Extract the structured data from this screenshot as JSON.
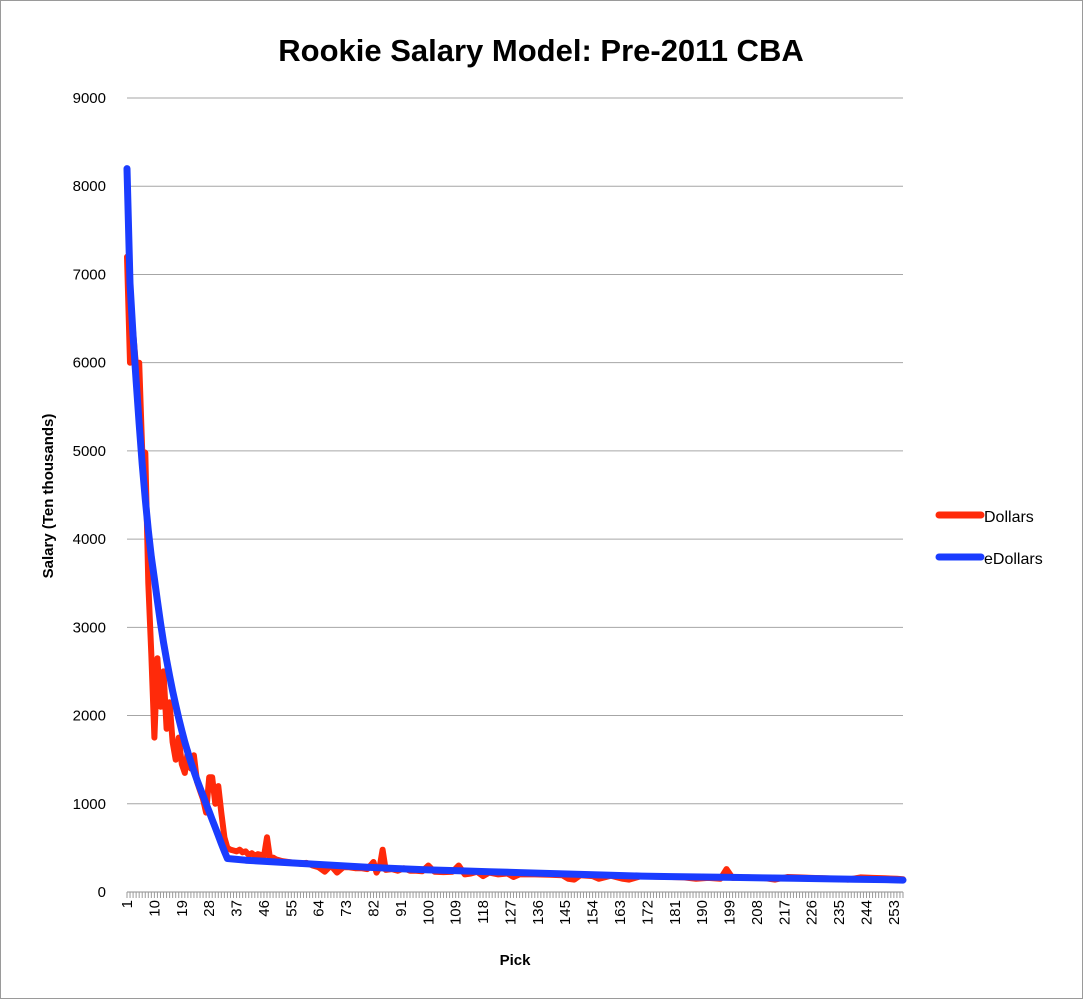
{
  "chart_data": {
    "type": "line",
    "title": "Rookie Salary Model: Pre-2011 CBA",
    "xlabel": "Pick",
    "ylabel": "Salary (Ten thousands)",
    "x_range": [
      1,
      256
    ],
    "ylim": [
      0,
      9000
    ],
    "y_ticks": [
      0,
      1000,
      2000,
      3000,
      4000,
      5000,
      6000,
      7000,
      8000,
      9000
    ],
    "x_tick_labels": [
      1,
      10,
      19,
      28,
      37,
      46,
      55,
      64,
      73,
      82,
      91,
      100,
      109,
      118,
      127,
      136,
      145,
      154,
      163,
      172,
      181,
      190,
      199,
      208,
      217,
      226,
      235,
      244,
      253
    ],
    "grid": true,
    "legend_position": "right",
    "series": [
      {
        "name": "Dollars",
        "color": "#ff2a0a",
        "points": [
          [
            1,
            7200
          ],
          [
            2,
            6000
          ],
          [
            3,
            6350
          ],
          [
            4,
            5950
          ],
          [
            5,
            6000
          ],
          [
            6,
            5000
          ],
          [
            7,
            4980
          ],
          [
            8,
            3500
          ],
          [
            9,
            2700
          ],
          [
            10,
            1750
          ],
          [
            11,
            2650
          ],
          [
            12,
            2100
          ],
          [
            13,
            2500
          ],
          [
            14,
            1850
          ],
          [
            15,
            2150
          ],
          [
            16,
            1700
          ],
          [
            17,
            1500
          ],
          [
            18,
            1750
          ],
          [
            19,
            1450
          ],
          [
            20,
            1350
          ],
          [
            21,
            1600
          ],
          [
            22,
            1400
          ],
          [
            23,
            1550
          ],
          [
            24,
            1250
          ],
          [
            25,
            1150
          ],
          [
            26,
            1050
          ],
          [
            27,
            900
          ],
          [
            28,
            1300
          ],
          [
            29,
            1300
          ],
          [
            30,
            1000
          ],
          [
            31,
            1200
          ],
          [
            32,
            900
          ],
          [
            33,
            620
          ],
          [
            34,
            500
          ],
          [
            35,
            480
          ],
          [
            36,
            470
          ],
          [
            37,
            460
          ],
          [
            38,
            480
          ],
          [
            39,
            450
          ],
          [
            40,
            460
          ],
          [
            41,
            420
          ],
          [
            42,
            440
          ],
          [
            43,
            410
          ],
          [
            44,
            430
          ],
          [
            45,
            420
          ],
          [
            46,
            400
          ],
          [
            47,
            620
          ],
          [
            48,
            380
          ],
          [
            49,
            390
          ],
          [
            50,
            370
          ],
          [
            52,
            350
          ],
          [
            54,
            340
          ],
          [
            56,
            330
          ],
          [
            58,
            320
          ],
          [
            60,
            330
          ],
          [
            62,
            300
          ],
          [
            64,
            280
          ],
          [
            66,
            230
          ],
          [
            68,
            300
          ],
          [
            70,
            220
          ],
          [
            72,
            280
          ],
          [
            74,
            280
          ],
          [
            76,
            270
          ],
          [
            78,
            270
          ],
          [
            80,
            260
          ],
          [
            82,
            340
          ],
          [
            83,
            220
          ],
          [
            84,
            280
          ],
          [
            85,
            480
          ],
          [
            86,
            250
          ],
          [
            88,
            260
          ],
          [
            90,
            240
          ],
          [
            92,
            270
          ],
          [
            94,
            240
          ],
          [
            96,
            240
          ],
          [
            98,
            235
          ],
          [
            100,
            300
          ],
          [
            102,
            230
          ],
          [
            105,
            225
          ],
          [
            108,
            230
          ],
          [
            110,
            300
          ],
          [
            112,
            200
          ],
          [
            114,
            210
          ],
          [
            116,
            230
          ],
          [
            118,
            180
          ],
          [
            120,
            220
          ],
          [
            123,
            200
          ],
          [
            126,
            210
          ],
          [
            128,
            170
          ],
          [
            130,
            200
          ],
          [
            135,
            200
          ],
          [
            140,
            195
          ],
          [
            144,
            190
          ],
          [
            146,
            150
          ],
          [
            148,
            140
          ],
          [
            150,
            190
          ],
          [
            154,
            180
          ],
          [
            156,
            150
          ],
          [
            160,
            185
          ],
          [
            164,
            150
          ],
          [
            166,
            140
          ],
          [
            170,
            180
          ],
          [
            175,
            175
          ],
          [
            180,
            170
          ],
          [
            184,
            165
          ],
          [
            188,
            150
          ],
          [
            192,
            160
          ],
          [
            196,
            150
          ],
          [
            198,
            260
          ],
          [
            200,
            160
          ],
          [
            205,
            165
          ],
          [
            210,
            160
          ],
          [
            214,
            140
          ],
          [
            218,
            170
          ],
          [
            222,
            165
          ],
          [
            226,
            160
          ],
          [
            230,
            155
          ],
          [
            234,
            150
          ],
          [
            238,
            140
          ],
          [
            242,
            165
          ],
          [
            246,
            160
          ],
          [
            250,
            155
          ],
          [
            254,
            150
          ],
          [
            256,
            145
          ]
        ]
      },
      {
        "name": "eDollars",
        "color": "#1a3cff",
        "points": [
          [
            1,
            8200
          ],
          [
            2,
            6900
          ],
          [
            3,
            6300
          ],
          [
            4,
            5800
          ],
          [
            5,
            5300
          ],
          [
            6,
            4850
          ],
          [
            7,
            4450
          ],
          [
            8,
            4100
          ],
          [
            9,
            3800
          ],
          [
            10,
            3550
          ],
          [
            11,
            3300
          ],
          [
            12,
            3050
          ],
          [
            13,
            2830
          ],
          [
            14,
            2630
          ],
          [
            15,
            2450
          ],
          [
            16,
            2280
          ],
          [
            17,
            2120
          ],
          [
            18,
            1970
          ],
          [
            19,
            1830
          ],
          [
            20,
            1700
          ],
          [
            21,
            1580
          ],
          [
            22,
            1470
          ],
          [
            23,
            1370
          ],
          [
            24,
            1270
          ],
          [
            25,
            1180
          ],
          [
            26,
            1090
          ],
          [
            27,
            1000
          ],
          [
            28,
            910
          ],
          [
            29,
            820
          ],
          [
            30,
            730
          ],
          [
            31,
            640
          ],
          [
            32,
            550
          ],
          [
            33,
            460
          ],
          [
            34,
            380
          ],
          [
            40,
            360
          ],
          [
            50,
            340
          ],
          [
            60,
            320
          ],
          [
            70,
            300
          ],
          [
            80,
            280
          ],
          [
            90,
            265
          ],
          [
            100,
            250
          ],
          [
            110,
            240
          ],
          [
            120,
            230
          ],
          [
            130,
            220
          ],
          [
            140,
            210
          ],
          [
            150,
            200
          ],
          [
            160,
            190
          ],
          [
            170,
            180
          ],
          [
            180,
            175
          ],
          [
            190,
            170
          ],
          [
            200,
            165
          ],
          [
            210,
            160
          ],
          [
            220,
            155
          ],
          [
            230,
            150
          ],
          [
            240,
            145
          ],
          [
            250,
            140
          ],
          [
            256,
            135
          ]
        ]
      }
    ]
  }
}
